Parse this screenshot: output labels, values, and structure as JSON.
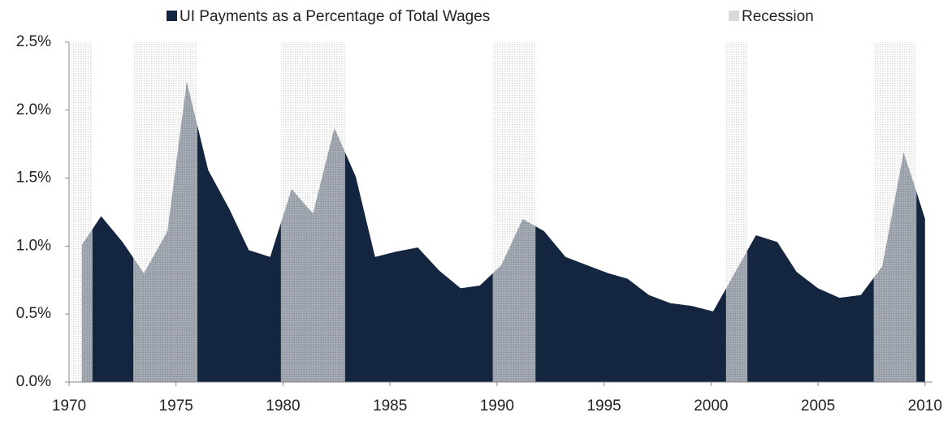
{
  "chart_data": {
    "type": "area",
    "x": [
      1970.6,
      1971.5,
      1972.5,
      1973.5,
      1974.6,
      1975.5,
      1976.5,
      1977.5,
      1978.4,
      1979.4,
      1980.4,
      1981.4,
      1982.4,
      1983.4,
      1984.3,
      1985.3,
      1986.3,
      1987.3,
      1988.3,
      1989.2,
      1990.2,
      1991.2,
      1992.2,
      1993.2,
      1994.2,
      1995.2,
      1996.1,
      1997.1,
      1998.1,
      1999.1,
      2000.1,
      2001.1,
      2002.1,
      2003.1,
      2004.0,
      2005.0,
      2006.0,
      2007.0,
      2008.0,
      2009.0,
      2009.5,
      2010.0
    ],
    "series": [
      {
        "name": "UI Payments as a Percentage of Total Wages",
        "color": "#14253f",
        "values": [
          1.01,
          1.22,
          1.03,
          0.8,
          1.11,
          2.21,
          1.56,
          1.27,
          0.97,
          0.92,
          1.42,
          1.24,
          1.87,
          1.51,
          0.92,
          0.96,
          0.99,
          0.82,
          0.69,
          0.71,
          0.86,
          1.2,
          1.11,
          0.92,
          0.86,
          0.8,
          0.76,
          0.64,
          0.58,
          0.56,
          0.52,
          0.8,
          1.08,
          1.03,
          0.81,
          0.69,
          0.62,
          0.64,
          0.85,
          1.69,
          1.45,
          1.2
        ]
      }
    ],
    "recession": {
      "name": "Recession",
      "color": "#d9d9d9",
      "periods": [
        [
          1970.1,
          1971.1
        ],
        [
          1973.0,
          1976.0
        ],
        [
          1979.9,
          1982.9
        ],
        [
          1989.8,
          1991.8
        ],
        [
          2000.7,
          2001.7
        ],
        [
          2007.6,
          2009.6
        ]
      ]
    },
    "xlim": [
      1970,
      2010.35
    ],
    "xticks": [
      1970,
      1975,
      1980,
      1985,
      1990,
      1995,
      2000,
      2005,
      2010
    ],
    "ylim": [
      0,
      2.5
    ],
    "yticks": [
      {
        "value": 0,
        "label": "0.0%"
      },
      {
        "value": 0.5,
        "label": "0.5%"
      },
      {
        "value": 1,
        "label": "1.0%"
      },
      {
        "value": 1.5,
        "label": "1.5%"
      },
      {
        "value": 2,
        "label": "2.0%"
      },
      {
        "value": 2.5,
        "label": "2.5%"
      }
    ],
    "grid": false
  }
}
